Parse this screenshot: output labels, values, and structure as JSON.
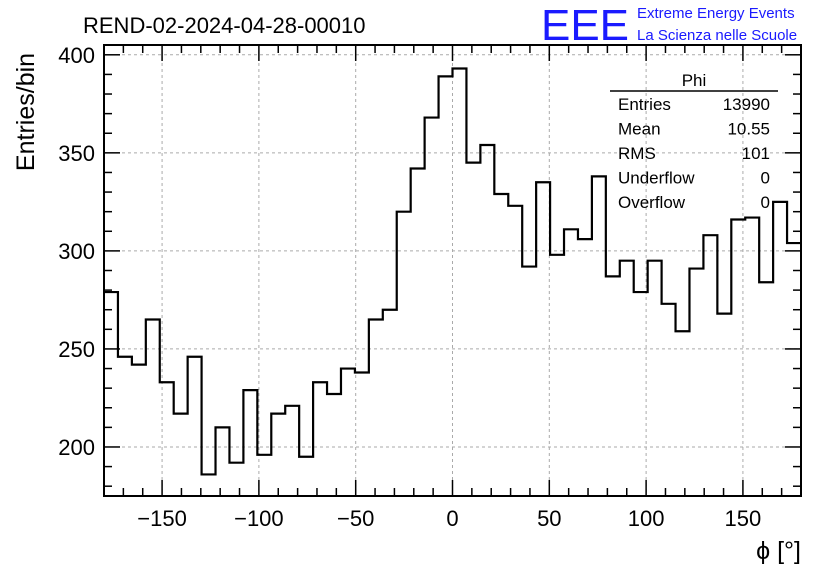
{
  "chart_data": {
    "type": "histogram",
    "title": "REND-02-2024-04-28-00010",
    "xlabel": "ϕ [°]",
    "ylabel": "Entries/bin",
    "xlim": [
      -180,
      180
    ],
    "ylim": [
      175,
      405
    ],
    "bin_width": 7.2,
    "x_ticks": [
      -150,
      -100,
      -50,
      0,
      50,
      100,
      150
    ],
    "x_tick_labels": [
      "−150",
      "−100",
      "−50",
      "0",
      "50",
      "100",
      "150"
    ],
    "y_ticks": [
      200,
      250,
      300,
      350,
      400
    ],
    "y_tick_labels": [
      "200",
      "250",
      "300",
      "350",
      "400"
    ],
    "grid": true,
    "values": [
      279,
      246,
      242,
      265,
      233,
      217,
      246,
      186,
      210,
      192,
      229,
      196,
      217,
      221,
      195,
      233,
      227,
      240,
      238,
      265,
      270,
      320,
      342,
      368,
      389,
      393,
      345,
      354,
      329,
      323,
      292,
      335,
      298,
      311,
      306,
      338,
      287,
      295,
      279,
      295,
      273,
      259,
      291,
      308,
      268,
      316,
      317,
      284,
      325,
      304
    ],
    "stats_box": {
      "title": "Phi",
      "rows": [
        {
          "label": "Entries",
          "value": "13990"
        },
        {
          "label": "Mean",
          "value": "10.55"
        },
        {
          "label": "RMS",
          "value": "101"
        },
        {
          "label": "Underflow",
          "value": "0"
        },
        {
          "label": "Overflow",
          "value": "0"
        }
      ]
    },
    "line_color": "#000000",
    "grid_color": "#aaaaaa"
  },
  "logo": {
    "mark": "EEE",
    "line1": "Extreme Energy Events",
    "line2": "La Scienza nelle Scuole",
    "color": "#1a1aff"
  }
}
